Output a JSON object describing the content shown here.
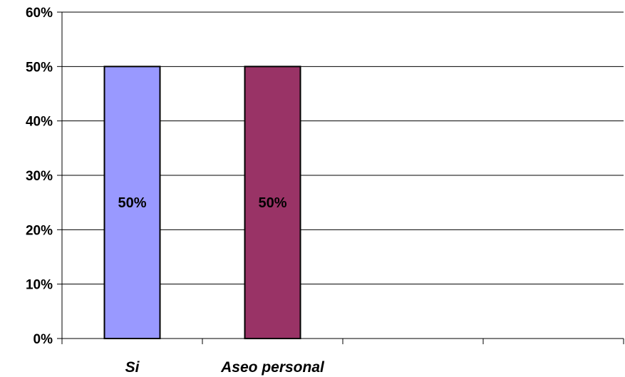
{
  "chart_data": {
    "type": "bar",
    "categories": [
      "Si",
      "Aseo personal",
      "",
      ""
    ],
    "values": [
      50,
      50,
      null,
      null
    ],
    "value_labels": [
      "50%",
      "50%",
      "",
      ""
    ],
    "colors": [
      "#9999ff",
      "#993366"
    ],
    "y_ticks": [
      "0%",
      "10%",
      "20%",
      "30%",
      "40%",
      "50%",
      "60%"
    ],
    "ylim": [
      0,
      60
    ],
    "grid": true,
    "title": "",
    "xlabel": "",
    "ylabel": ""
  }
}
